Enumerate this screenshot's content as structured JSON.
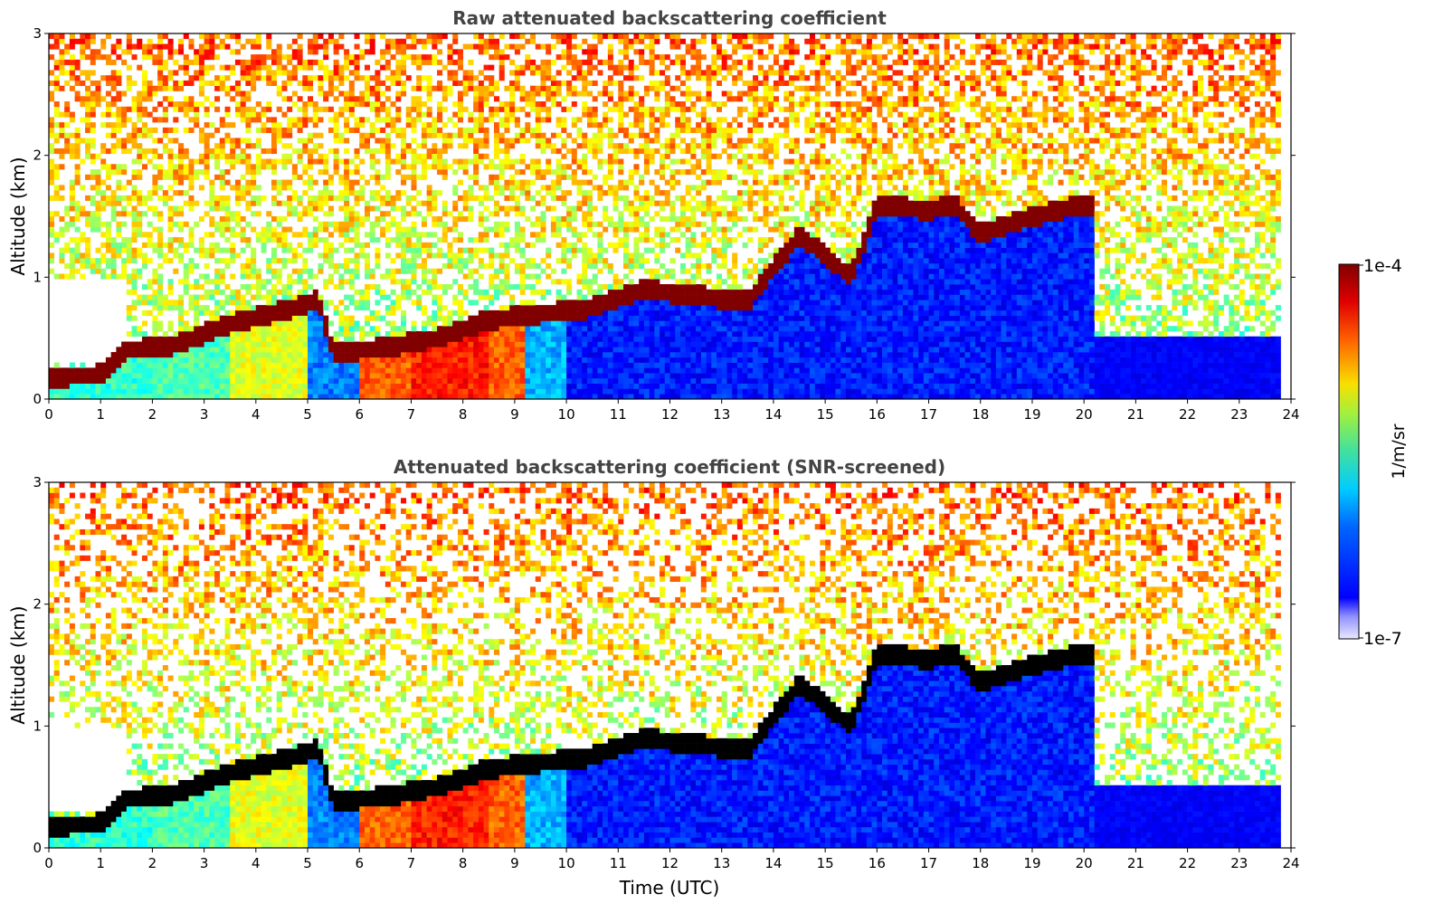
{
  "chart_data": [
    {
      "type": "heatmap",
      "title": "Raw attenuated backscattering coefficient",
      "xlabel": "",
      "ylabel": "Altitude (km)",
      "xlim": [
        0,
        24
      ],
      "ylim": [
        0,
        3
      ],
      "xticks": [
        "0",
        "1",
        "2",
        "3",
        "4",
        "5",
        "6",
        "7",
        "8",
        "9",
        "10",
        "11",
        "12",
        "13",
        "14",
        "15",
        "16",
        "17",
        "18",
        "19",
        "20",
        "21",
        "22",
        "23",
        "24"
      ],
      "yticks": [
        "0",
        "1",
        "2",
        "3"
      ],
      "colormap": "jet",
      "color_scale": "log",
      "features": {
        "layer_top_km": [
          {
            "x": 0.0,
            "y": 0.18
          },
          {
            "x": 1.0,
            "y": 0.2
          },
          {
            "x": 1.5,
            "y": 0.4
          },
          {
            "x": 2.5,
            "y": 0.45
          },
          {
            "x": 3.5,
            "y": 0.62
          },
          {
            "x": 4.5,
            "y": 0.72
          },
          {
            "x": 5.2,
            "y": 0.82
          },
          {
            "x": 5.5,
            "y": 0.38
          },
          {
            "x": 6.5,
            "y": 0.42
          },
          {
            "x": 7.5,
            "y": 0.5
          },
          {
            "x": 8.5,
            "y": 0.65
          },
          {
            "x": 9.5,
            "y": 0.7
          },
          {
            "x": 10.5,
            "y": 0.75
          },
          {
            "x": 11.5,
            "y": 0.9
          },
          {
            "x": 12.5,
            "y": 0.85
          },
          {
            "x": 13.5,
            "y": 0.8
          },
          {
            "x": 14.5,
            "y": 1.35
          },
          {
            "x": 15.5,
            "y": 1.0
          },
          {
            "x": 16.0,
            "y": 1.6
          },
          {
            "x": 17.0,
            "y": 1.55
          },
          {
            "x": 17.5,
            "y": 1.6
          },
          {
            "x": 18.0,
            "y": 1.35
          },
          {
            "x": 19.0,
            "y": 1.5
          },
          {
            "x": 20.0,
            "y": 1.6
          },
          {
            "x": 20.2,
            "y": 1.58
          }
        ]
      }
    },
    {
      "type": "heatmap",
      "title": "Attenuated backscattering coefficient (SNR-screened)",
      "xlabel": "Time (UTC)",
      "ylabel": "Altitude (km)",
      "xlim": [
        0,
        24
      ],
      "ylim": [
        0,
        3
      ],
      "xticks": [
        "0",
        "1",
        "2",
        "3",
        "4",
        "5",
        "6",
        "7",
        "8",
        "9",
        "10",
        "11",
        "12",
        "13",
        "14",
        "15",
        "16",
        "17",
        "18",
        "19",
        "20",
        "21",
        "22",
        "23",
        "24"
      ],
      "yticks": [
        "0",
        "1",
        "2",
        "3"
      ],
      "colormap": "jet",
      "color_scale": "log"
    }
  ],
  "colorbar": {
    "label": "1/m/sr",
    "max_label": "1e-4",
    "min_label": "1e-7",
    "range": [
      1e-07,
      0.0001
    ]
  },
  "colors": {
    "title": "#444444",
    "jet_low": "#00008f",
    "jet_high": "#800000",
    "cloud_screened": "#000000"
  }
}
